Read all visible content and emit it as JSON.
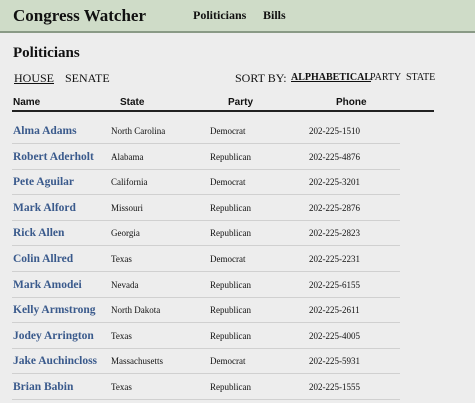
{
  "header": {
    "brand": "Congress Watcher",
    "nav": [
      "Politicians",
      "Bills"
    ]
  },
  "page": {
    "title": "Politicians"
  },
  "chamber_tabs": {
    "house": "HOUSE",
    "senate": "SENATE",
    "selected": "HOUSE"
  },
  "sort": {
    "label": "SORT BY:",
    "options": [
      "ALPHABETICAL",
      "PARTY",
      "STATE"
    ],
    "selected": "ALPHABETICAL"
  },
  "table": {
    "columns": [
      "Name",
      "State",
      "Party",
      "Phone"
    ],
    "rows": [
      {
        "name": "Alma Adams",
        "state": "North Carolina",
        "party": "Democrat",
        "phone": "202-225-1510"
      },
      {
        "name": "Robert Aderholt",
        "state": "Alabama",
        "party": "Republican",
        "phone": "202-225-4876"
      },
      {
        "name": "Pete Aguilar",
        "state": "California",
        "party": "Democrat",
        "phone": "202-225-3201"
      },
      {
        "name": "Mark Alford",
        "state": "Missouri",
        "party": "Republican",
        "phone": "202-225-2876"
      },
      {
        "name": "Rick Allen",
        "state": "Georgia",
        "party": "Republican",
        "phone": "202-225-2823"
      },
      {
        "name": "Colin Allred",
        "state": "Texas",
        "party": "Democrat",
        "phone": "202-225-2231"
      },
      {
        "name": "Mark Amodei",
        "state": "Nevada",
        "party": "Republican",
        "phone": "202-225-6155"
      },
      {
        "name": "Kelly Armstrong",
        "state": "North Dakota",
        "party": "Republican",
        "phone": "202-225-2611"
      },
      {
        "name": "Jodey Arrington",
        "state": "Texas",
        "party": "Republican",
        "phone": "202-225-4005"
      },
      {
        "name": "Jake Auchincloss",
        "state": "Massachusetts",
        "party": "Democrat",
        "phone": "202-225-5931"
      },
      {
        "name": "Brian Babin",
        "state": "Texas",
        "party": "Republican",
        "phone": "202-225-1555"
      }
    ]
  },
  "colors": {
    "topbar": "#cfdcc8",
    "name_link": "#3a5a8c",
    "background": "#ededed"
  }
}
